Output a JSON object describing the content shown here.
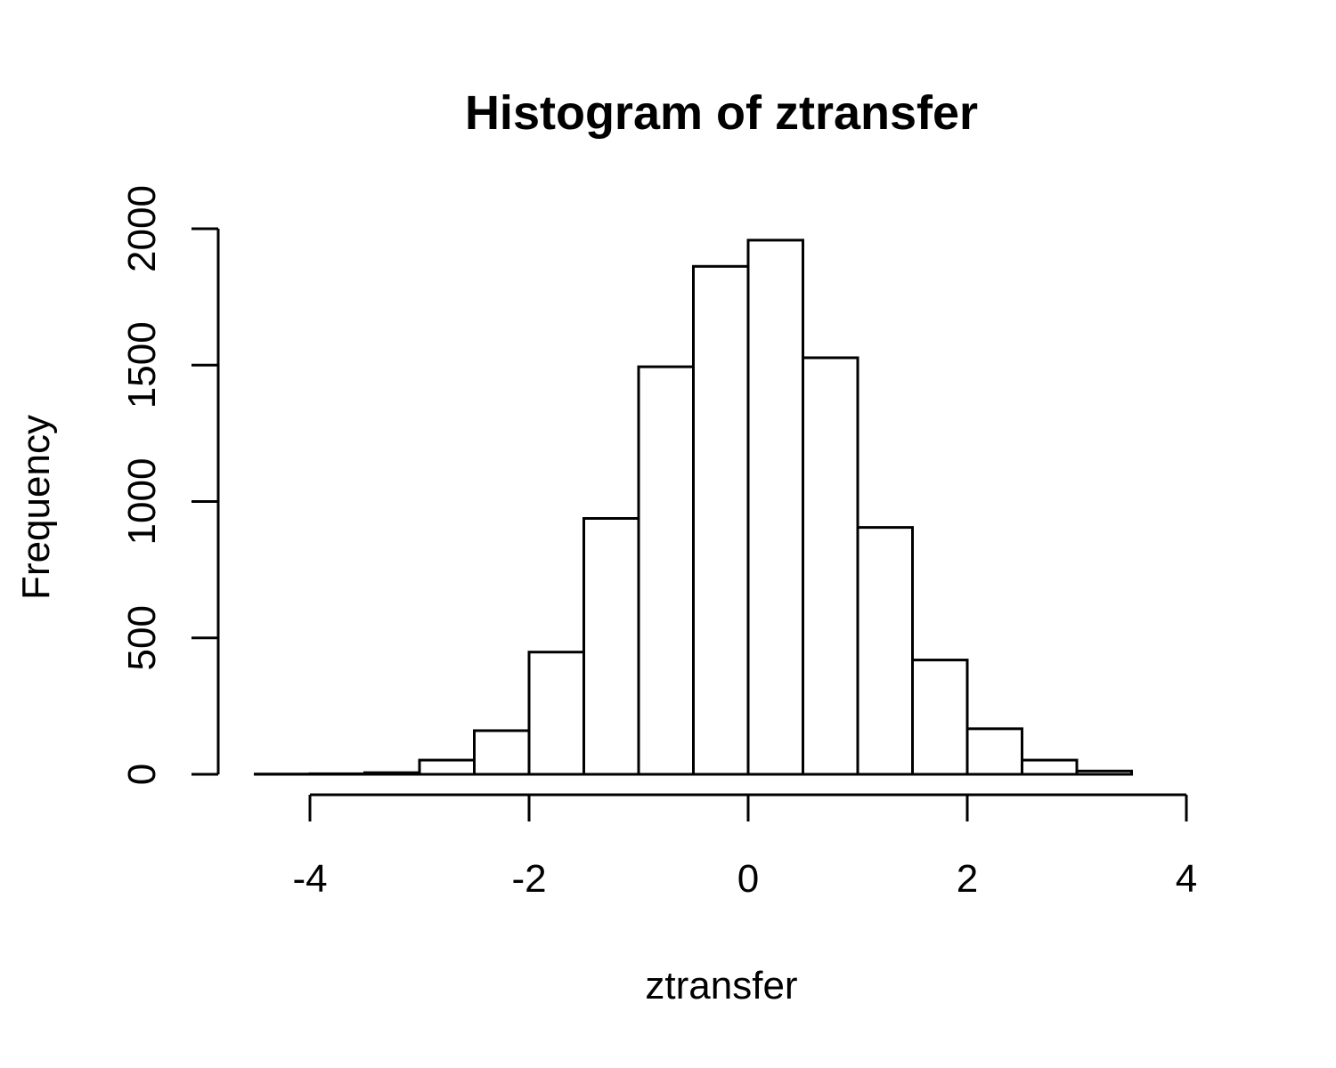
{
  "chart_data": {
    "type": "bar",
    "title": "Histogram of ztransfer",
    "xlabel": "ztransfer",
    "ylabel": "Frequency",
    "xlim": [
      -4,
      4
    ],
    "ylim": [
      0,
      2000
    ],
    "x_ticks": [
      -4,
      -2,
      0,
      2,
      4
    ],
    "y_ticks": [
      0,
      500,
      1000,
      1500,
      2000
    ],
    "bin_edges": [
      -4.5,
      -4.0,
      -3.5,
      -3.0,
      -2.5,
      -2.0,
      -1.5,
      -1.0,
      -0.5,
      0.0,
      0.5,
      1.0,
      1.5,
      2.0,
      2.5,
      3.0,
      3.5
    ],
    "values": [
      1,
      2,
      6,
      52,
      160,
      448,
      938,
      1494,
      1862,
      1958,
      1527,
      905,
      419,
      167,
      52,
      12
    ],
    "bar_fill": "#ffffff",
    "bar_stroke": "#000000",
    "grid": false,
    "legend": "none"
  }
}
